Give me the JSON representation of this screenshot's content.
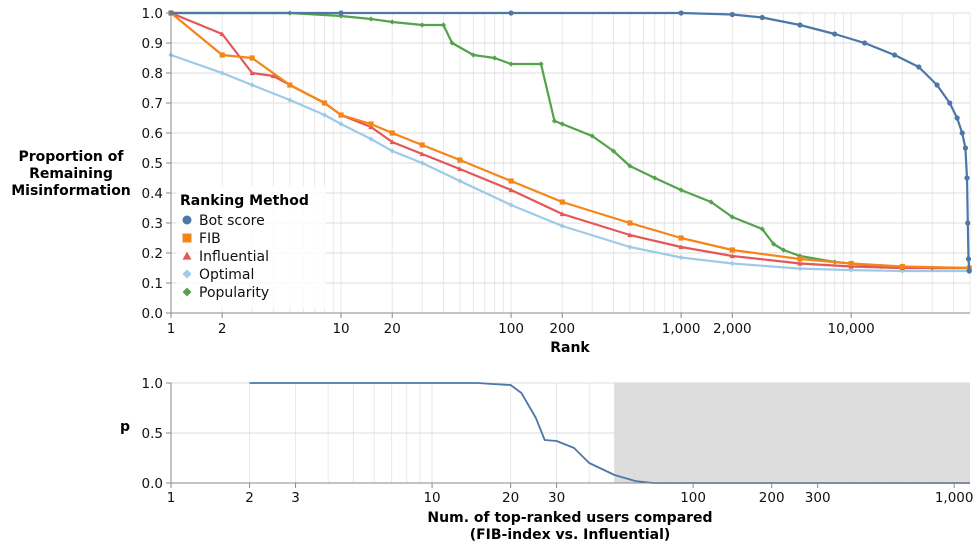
{
  "chart_data": [
    {
      "type": "line",
      "xscale": "log",
      "xlabel": "Rank",
      "ylabel": [
        "Proportion of",
        "Remaining",
        "Misinformation"
      ],
      "xlim": [
        1,
        50000
      ],
      "ylim": [
        0,
        1
      ],
      "xticks": [
        {
          "value": 1,
          "label": "1"
        },
        {
          "value": 2,
          "label": "2"
        },
        {
          "value": 10,
          "label": "10"
        },
        {
          "value": 20,
          "label": "20"
        },
        {
          "value": 100,
          "label": "100"
        },
        {
          "value": 200,
          "label": "200"
        },
        {
          "value": 1000,
          "label": "1,000"
        },
        {
          "value": 2000,
          "label": "2,000"
        },
        {
          "value": 10000,
          "label": "10,000"
        }
      ],
      "yticks": [
        {
          "value": 0.0,
          "label": "0.0"
        },
        {
          "value": 0.1,
          "label": "0.1"
        },
        {
          "value": 0.2,
          "label": "0.2"
        },
        {
          "value": 0.3,
          "label": "0.3"
        },
        {
          "value": 0.4,
          "label": "0.4"
        },
        {
          "value": 0.5,
          "label": "0.5"
        },
        {
          "value": 0.6,
          "label": "0.6"
        },
        {
          "value": 0.7,
          "label": "0.7"
        },
        {
          "value": 0.8,
          "label": "0.8"
        },
        {
          "value": 0.9,
          "label": "0.9"
        },
        {
          "value": 1.0,
          "label": "1.0"
        }
      ],
      "legend": {
        "title": "Ranking Method",
        "placement": "left"
      },
      "series": [
        {
          "name": "Bot score",
          "color": "#4c78a8",
          "marker": "circle",
          "x": [
            1,
            10,
            100,
            1000,
            2000,
            3000,
            5000,
            8000,
            12000,
            18000,
            25000,
            32000,
            38000,
            42000,
            45000,
            47000,
            48000,
            48500,
            49000,
            49500
          ],
          "y": [
            1.0,
            1.0,
            1.0,
            1.0,
            0.995,
            0.985,
            0.96,
            0.93,
            0.9,
            0.86,
            0.82,
            0.76,
            0.7,
            0.65,
            0.6,
            0.55,
            0.45,
            0.3,
            0.18,
            0.14
          ]
        },
        {
          "name": "FIB",
          "color": "#f58518",
          "marker": "square",
          "x": [
            1,
            2,
            3,
            5,
            8,
            10,
            15,
            20,
            30,
            50,
            100,
            200,
            500,
            1000,
            2000,
            5000,
            10000,
            20000,
            49500
          ],
          "y": [
            1.0,
            0.86,
            0.85,
            0.76,
            0.7,
            0.66,
            0.63,
            0.6,
            0.56,
            0.51,
            0.44,
            0.37,
            0.3,
            0.25,
            0.21,
            0.18,
            0.165,
            0.155,
            0.15
          ]
        },
        {
          "name": "Influential",
          "color": "#e45756",
          "marker": "triangle",
          "x": [
            1,
            2,
            3,
            4,
            5,
            8,
            10,
            15,
            20,
            30,
            50,
            100,
            200,
            500,
            1000,
            2000,
            5000,
            10000,
            20000,
            49500
          ],
          "y": [
            1.0,
            0.93,
            0.8,
            0.79,
            0.76,
            0.7,
            0.66,
            0.62,
            0.57,
            0.53,
            0.48,
            0.41,
            0.33,
            0.26,
            0.22,
            0.19,
            0.165,
            0.155,
            0.15,
            0.15
          ]
        },
        {
          "name": "Optimal",
          "color": "#9ecae9",
          "marker": "diamond",
          "x": [
            1,
            2,
            3,
            5,
            8,
            10,
            15,
            20,
            30,
            50,
            100,
            200,
            500,
            1000,
            2000,
            5000,
            10000,
            20000,
            49500
          ],
          "y": [
            0.86,
            0.8,
            0.76,
            0.71,
            0.66,
            0.63,
            0.58,
            0.54,
            0.5,
            0.44,
            0.36,
            0.29,
            0.22,
            0.185,
            0.165,
            0.148,
            0.143,
            0.14,
            0.14
          ]
        },
        {
          "name": "Popularity",
          "color": "#54a24b",
          "marker": "diamond",
          "x": [
            1,
            5,
            10,
            15,
            20,
            30,
            40,
            45,
            60,
            80,
            100,
            150,
            180,
            200,
            300,
            400,
            500,
            700,
            1000,
            1500,
            2000,
            3000,
            3500,
            4000,
            5000,
            8000,
            15000,
            30000,
            49500
          ],
          "y": [
            1.0,
            1.0,
            0.99,
            0.98,
            0.97,
            0.96,
            0.96,
            0.9,
            0.86,
            0.85,
            0.83,
            0.83,
            0.64,
            0.63,
            0.59,
            0.54,
            0.49,
            0.45,
            0.41,
            0.37,
            0.32,
            0.28,
            0.23,
            0.21,
            0.19,
            0.17,
            0.155,
            0.15,
            0.15
          ]
        }
      ]
    },
    {
      "type": "area",
      "xscale": "log",
      "xlabel": [
        "Num. of top-ranked users compared",
        "(FIB-index vs. Influential)"
      ],
      "ylabel": "p",
      "xlim": [
        1,
        1150
      ],
      "ylim": [
        0,
        1
      ],
      "xticks": [
        {
          "value": 1,
          "label": "1"
        },
        {
          "value": 2,
          "label": "2"
        },
        {
          "value": 3,
          "label": "3"
        },
        {
          "value": 10,
          "label": "10"
        },
        {
          "value": 20,
          "label": "20"
        },
        {
          "value": 30,
          "label": "30"
        },
        {
          "value": 100,
          "label": "100"
        },
        {
          "value": 200,
          "label": "200"
        },
        {
          "value": 300,
          "label": "300"
        },
        {
          "value": 1000,
          "label": "1,000"
        }
      ],
      "yticks": [
        {
          "value": 0.0,
          "label": "0.0"
        },
        {
          "value": 0.5,
          "label": "0.5"
        },
        {
          "value": 1.0,
          "label": "1.0"
        }
      ],
      "shaded_region": {
        "from": 50,
        "to": 1150,
        "color": "#d9d9d9"
      },
      "series": [
        {
          "name": "p",
          "color": "#4c78a8",
          "x": [
            2,
            5,
            10,
            15,
            17,
            20,
            22,
            25,
            27,
            30,
            35,
            40,
            50,
            60,
            70,
            100,
            200,
            500,
            1150
          ],
          "y": [
            1.0,
            1.0,
            1.0,
            1.0,
            0.99,
            0.98,
            0.9,
            0.65,
            0.43,
            0.42,
            0.35,
            0.2,
            0.08,
            0.02,
            0.0,
            0.0,
            0.0,
            0.0,
            0.0
          ]
        }
      ]
    }
  ]
}
